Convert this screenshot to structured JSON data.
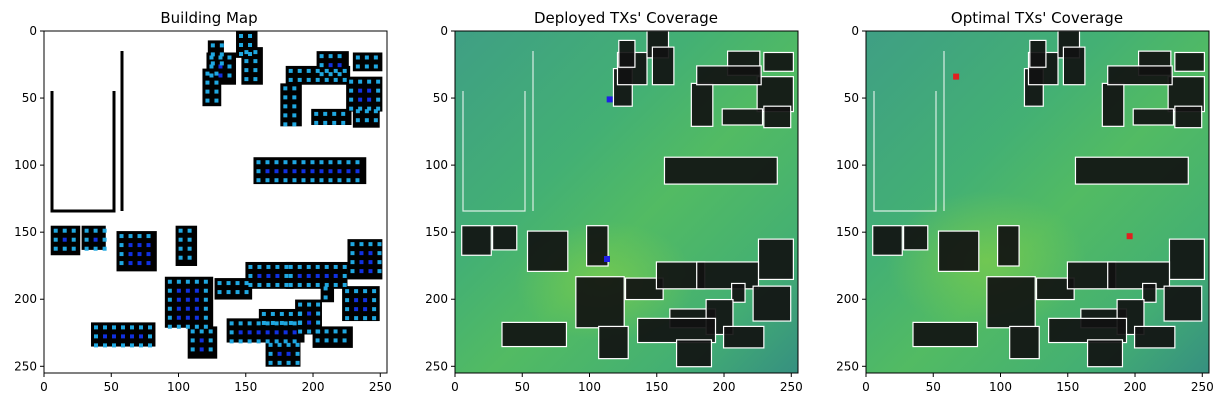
{
  "chart_data": [
    {
      "type": "heatmap",
      "title": "Building Map",
      "xlabel": "",
      "ylabel": "",
      "xlim": [
        0,
        255
      ],
      "ylim": [
        255,
        0
      ],
      "x_ticks": [
        0,
        50,
        100,
        150,
        200,
        250
      ],
      "y_ticks": [
        0,
        50,
        100,
        150,
        200,
        250
      ],
      "grid": false,
      "colors": {
        "background": "#ffffff",
        "building": "#000000",
        "candidate_tx_light": "#1fa7e0",
        "candidate_tx_dark": "#1030e0"
      }
    },
    {
      "type": "heatmap",
      "title": "Deployed TXs' Coverage",
      "xlabel": "",
      "ylabel": "",
      "xlim": [
        0,
        255
      ],
      "ylim": [
        255,
        0
      ],
      "x_ticks": [
        0,
        50,
        100,
        150,
        200,
        250
      ],
      "y_ticks": [
        0,
        50,
        100,
        150,
        200,
        250
      ],
      "grid": false,
      "tx_points": [
        {
          "x": 115,
          "y": 51
        },
        {
          "x": 113,
          "y": 170
        }
      ],
      "colors": {
        "coverage_low": "#3a9a82",
        "coverage_mid": "#3fae78",
        "coverage_high": "#6cc456",
        "building": "#111111",
        "outline": "#ffffff",
        "tx": "#1f1fe6"
      }
    },
    {
      "type": "heatmap",
      "title": "Optimal TXs' Coverage",
      "xlabel": "",
      "ylabel": "",
      "xlim": [
        0,
        255
      ],
      "ylim": [
        255,
        0
      ],
      "x_ticks": [
        0,
        50,
        100,
        150,
        200,
        250
      ],
      "y_ticks": [
        0,
        50,
        100,
        150,
        200,
        250
      ],
      "grid": false,
      "tx_points": [
        {
          "x": 67,
          "y": 34
        },
        {
          "x": 196,
          "y": 153
        }
      ],
      "colors": {
        "coverage_low": "#3a9a82",
        "coverage_mid": "#3fae78",
        "coverage_high": "#6cc456",
        "building": "#111111",
        "outline": "#ffffff",
        "tx": "#e02020"
      }
    }
  ]
}
